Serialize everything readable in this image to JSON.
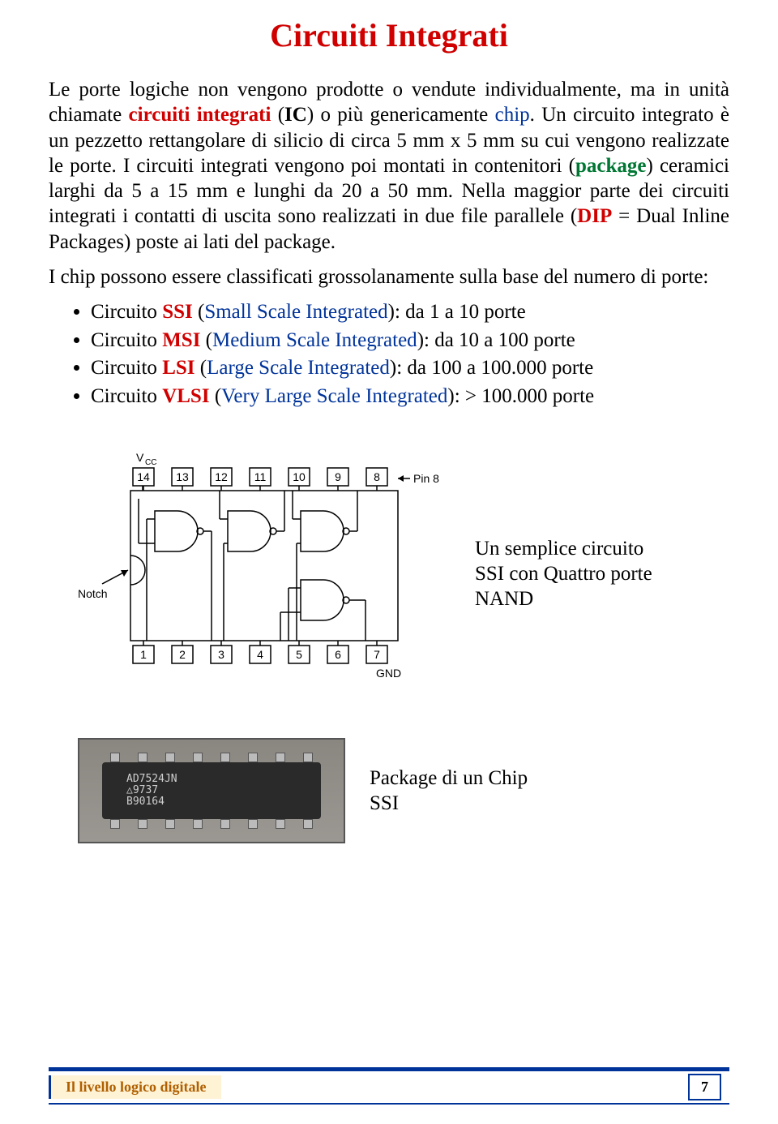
{
  "title": "Circuiti Integrati",
  "para1": {
    "p1a": "Le porte logiche non vengono prodotte o vendute individualmente, ma in unità chiamate ",
    "t1": "circuiti integrati",
    "p1b": " (",
    "t2": "IC",
    "p1c": ") o più genericamente ",
    "t3": "chip",
    "p1d": ". Un circuito integrato è un pezzetto rettangolare di silicio di circa 5 mm x 5 mm su cui vengono realizzate le porte. I circuiti integrati vengono poi montati in contenitori (",
    "t4": "package",
    "p1e": ") ceramici larghi da 5 a 15 mm e lunghi da 20 a 50 mm. Nella maggior parte dei circuiti integrati i contatti di uscita sono realizzati in due file parallele (",
    "t5": "DIP",
    "p1f": " = Dual Inline Packages) poste ai lati del package."
  },
  "para2": "I chip possono essere classificati grossolanamente sulla base del numero di porte:",
  "bullets": [
    {
      "pre": "Circuito ",
      "abbr": "SSI",
      "paren": " (",
      "full": "Small Scale Integrated",
      "post": "): da 1 a 10 porte"
    },
    {
      "pre": "Circuito ",
      "abbr": "MSI",
      "paren": " (",
      "full": "Medium Scale Integrated",
      "post": "): da 10 a 100 porte"
    },
    {
      "pre": "Circuito ",
      "abbr": "LSI",
      "paren": " (",
      "full": "Large Scale Integrated",
      "post": "): da 100 a 100.000 porte"
    },
    {
      "pre": "Circuito ",
      "abbr": "VLSI",
      "paren": " (",
      "full": "Very Large Scale Integrated",
      "post": "): > 100.000 porte"
    }
  ],
  "diagram": {
    "vcc": "V",
    "vcc_sub": "CC",
    "gnd": "GND",
    "notch": "Notch",
    "pin8": "Pin 8",
    "top_pins": [
      "14",
      "13",
      "12",
      "11",
      "10",
      "9",
      "8"
    ],
    "bottom_pins": [
      "1",
      "2",
      "3",
      "4",
      "5",
      "6",
      "7"
    ],
    "stroke": "#000000",
    "font_family": "Arial, Helvetica, sans-serif",
    "font_size": 14
  },
  "caption1": "Un semplice circuito SSI con Quattro porte NAND",
  "chip_text": {
    "l1": "AD7524JN",
    "l2": "△9737",
    "l3": "B90164"
  },
  "caption2": "Package di un Chip SSI",
  "footer_title": "Il livello logico digitale",
  "page_number": "7",
  "colors": {
    "title": "#d00000",
    "blue": "#003399",
    "green": "#007733",
    "footer_bg": "#fff3d6",
    "footer_text": "#b06000"
  }
}
